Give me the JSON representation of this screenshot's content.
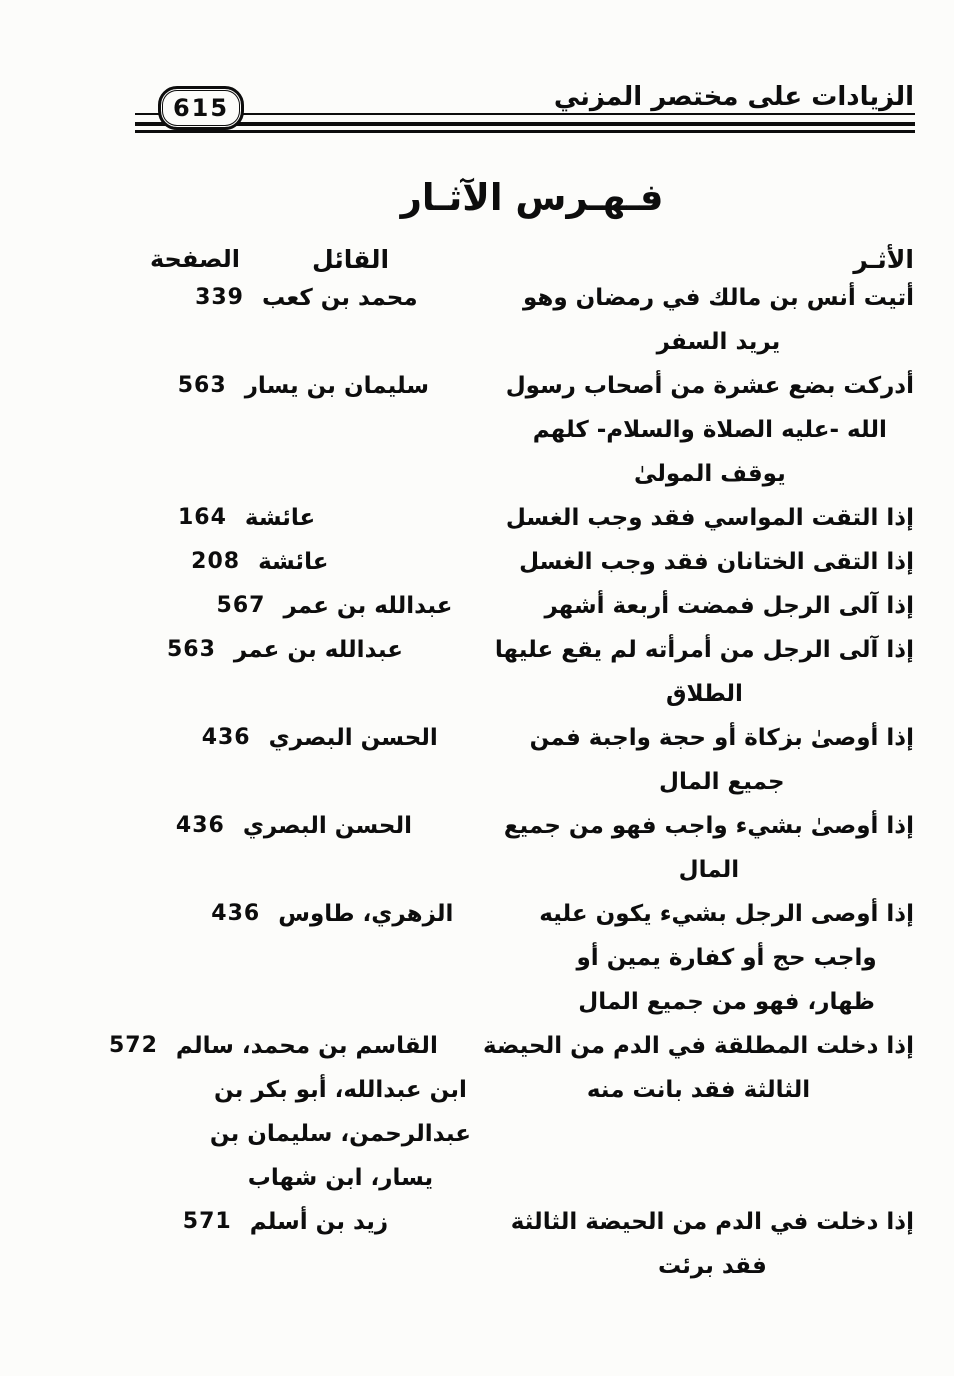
{
  "doc": {
    "header": {
      "book_title": "الزيادات على مختصر المزني",
      "page_number": "615"
    },
    "index_title": "فـهـرس الآثـار",
    "columns": {
      "athar": "الأثـر",
      "speaker": "القائل",
      "page": "الصفحة"
    },
    "rows": [
      {
        "athar_lines": [
          "أتيت أنس بن مالك في رمضان وهو",
          "يريد السفر"
        ],
        "speaker_lines": [
          "محمد بن كعب"
        ],
        "page": "339"
      },
      {
        "athar_lines": [
          "أدركت بضع عشرة من أصحاب رسول",
          "الله -عليه الصلاة والسلام- كلهم",
          "يوقف المولىٰ"
        ],
        "speaker_lines": [
          "سليمان بن يسار"
        ],
        "page": "563"
      },
      {
        "athar_lines": [
          "إذا التقت المواسي فقد وجب الغسل"
        ],
        "speaker_lines": [
          "عائشة"
        ],
        "page": "164"
      },
      {
        "athar_lines": [
          "إذا التقى الختانان فقد وجب الغسل"
        ],
        "speaker_lines": [
          "عائشة"
        ],
        "page": "208"
      },
      {
        "athar_lines": [
          "إذا آلى الرجل فمضت أربعة أشهر"
        ],
        "speaker_lines": [
          "عبدالله بن عمر"
        ],
        "page": "567"
      },
      {
        "athar_lines": [
          "إذا آلى الرجل من أمرأته لم يقع عليها",
          "الطلاق"
        ],
        "speaker_lines": [
          "عبدالله بن عمر"
        ],
        "page": "563"
      },
      {
        "athar_lines": [
          "إذا أوصىٰ بزكاة أو حجة واجبة فمن",
          "جميع المال"
        ],
        "speaker_lines": [
          "الحسن البصري"
        ],
        "page": "436"
      },
      {
        "athar_lines": [
          "إذا أوصىٰ بشيء واجب فهو من جميع",
          "المال"
        ],
        "speaker_lines": [
          "الحسن البصري"
        ],
        "page": "436"
      },
      {
        "athar_lines": [
          "إذا أوصى الرجل بشيء يكون عليه",
          "واجب حج أو كفارة يمين أو",
          "ظهار، فهو من جميع المال"
        ],
        "speaker_lines": [
          "الزهري، طاوس"
        ],
        "page": "436"
      },
      {
        "athar_lines": [
          "إذا دخلت المطلقة في الدم من الحيضة",
          "الثالثة فقد بانت منه"
        ],
        "speaker_lines": [
          "القاسم بن محمد، سالم",
          "ابن عبدالله، أبو بكر بن",
          "عبدالرحمن، سليمان بن",
          "يسار، ابن شهاب"
        ],
        "page": "572"
      },
      {
        "athar_lines": [
          "إذا دخلت في الدم من الحيضة الثالثة",
          "فقد برئت"
        ],
        "speaker_lines": [
          "زيد بن أسلم"
        ],
        "page": "571"
      }
    ]
  }
}
